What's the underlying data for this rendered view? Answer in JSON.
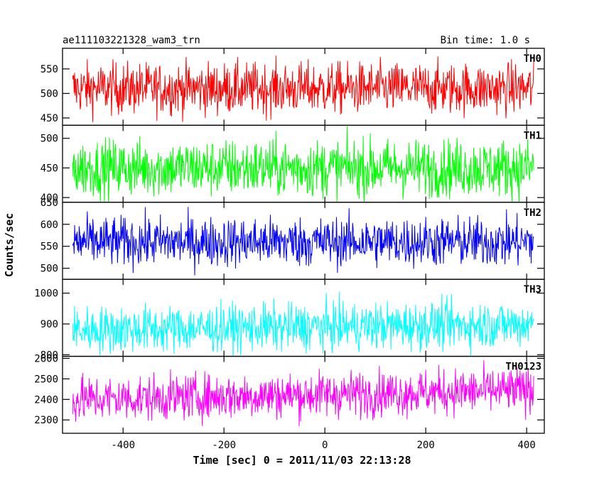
{
  "chart_data": {
    "type": "line",
    "title_left": "ae111103221328_wam3_trn",
    "title_right": "Bin time: 1.0 s",
    "xlabel": "Time [sec] 0 = 2011/11/03 22:13:28",
    "ylabel": "Counts/sec",
    "x_range": [
      -500,
      414
    ],
    "xlim": [
      -520,
      435
    ],
    "x_ticks": [
      -400,
      -200,
      0,
      200,
      400
    ],
    "panels": [
      {
        "name": "TH0",
        "color": "#ff0000",
        "ylim": [
          435,
          592
        ],
        "y_ticks": [
          450,
          500,
          550
        ],
        "mean": 510,
        "noise": 26,
        "trend": 0
      },
      {
        "name": "TH1",
        "color": "#00ff00",
        "ylim": [
          392,
          522
        ],
        "y_ticks": [
          400,
          450,
          500
        ],
        "mean": 450,
        "noise": 24,
        "trend": 0
      },
      {
        "name": "TH2",
        "color": "#0000ff",
        "ylim": [
          475,
          650
        ],
        "y_ticks": [
          500,
          550,
          600,
          650
        ],
        "mean": 560,
        "noise": 28,
        "trend": 0
      },
      {
        "name": "TH3",
        "color": "#00ffff",
        "ylim": [
          795,
          1045
        ],
        "y_ticks": [
          800,
          900,
          1000
        ],
        "mean": 880,
        "noise": 38,
        "trend": 20
      },
      {
        "name": "TH0123",
        "color": "#ff00ff",
        "ylim": [
          2235,
          2610
        ],
        "y_ticks": [
          2300,
          2400,
          2500,
          2600
        ],
        "mean": 2400,
        "noise": 55,
        "trend": 45
      }
    ]
  }
}
